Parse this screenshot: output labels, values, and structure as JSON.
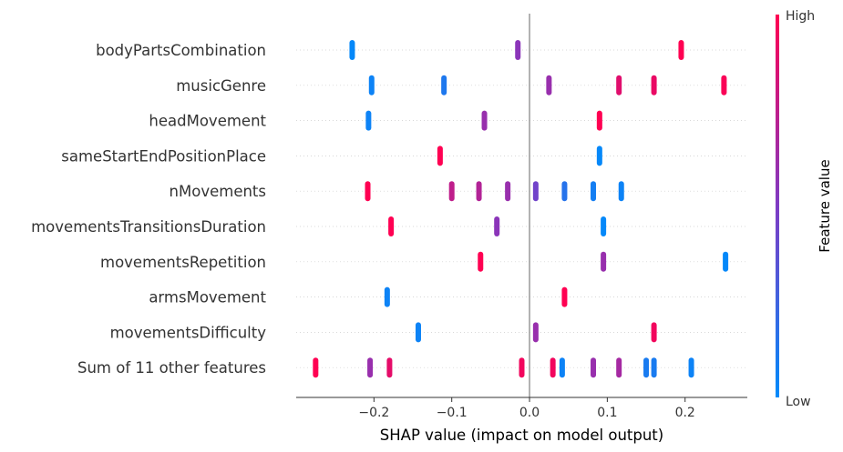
{
  "chart_data": {
    "type": "scatter",
    "subtype": "shap-beeswarm",
    "title": "",
    "xlabel": "SHAP value (impact on model output)",
    "xlim": [
      -0.3,
      0.28
    ],
    "xticks": [
      -0.2,
      -0.1,
      0.0,
      0.1,
      0.2
    ],
    "xtick_labels": [
      "−0.2",
      "−0.1",
      "0.0",
      "0.1",
      "0.2"
    ],
    "zero_line": true,
    "row_gridlines": true,
    "colors": {
      "low": "#008bfb",
      "mid": "#7e3bc4",
      "high": "#ff0052",
      "zero_line": "#999999",
      "grid": "#cccccc"
    },
    "colorbar": {
      "title": "Feature value",
      "high_label": "High",
      "low_label": "Low",
      "placement": "right"
    },
    "features": [
      {
        "name": "bodyPartsCombination",
        "points": [
          {
            "x": -0.228,
            "v": 0.02
          },
          {
            "x": -0.015,
            "v": 0.55
          },
          {
            "x": 0.195,
            "v": 1.0
          }
        ]
      },
      {
        "name": "musicGenre",
        "points": [
          {
            "x": -0.203,
            "v": 0.05
          },
          {
            "x": -0.11,
            "v": 0.12
          },
          {
            "x": 0.025,
            "v": 0.6
          },
          {
            "x": 0.115,
            "v": 0.88
          },
          {
            "x": 0.16,
            "v": 0.92
          },
          {
            "x": 0.25,
            "v": 0.98
          }
        ]
      },
      {
        "name": "headMovement",
        "points": [
          {
            "x": -0.207,
            "v": 0.05
          },
          {
            "x": -0.058,
            "v": 0.6
          },
          {
            "x": 0.09,
            "v": 1.0
          }
        ]
      },
      {
        "name": "sameStartEndPositionPlace",
        "points": [
          {
            "x": -0.115,
            "v": 1.0
          },
          {
            "x": 0.09,
            "v": 0.02
          }
        ]
      },
      {
        "name": "nMovements",
        "points": [
          {
            "x": -0.208,
            "v": 1.0
          },
          {
            "x": -0.1,
            "v": 0.75
          },
          {
            "x": -0.065,
            "v": 0.7
          },
          {
            "x": -0.028,
            "v": 0.6
          },
          {
            "x": 0.008,
            "v": 0.45
          },
          {
            "x": 0.045,
            "v": 0.15
          },
          {
            "x": 0.082,
            "v": 0.08
          },
          {
            "x": 0.118,
            "v": 0.05
          }
        ]
      },
      {
        "name": "movementsTransitionsDuration",
        "points": [
          {
            "x": -0.178,
            "v": 1.0
          },
          {
            "x": -0.042,
            "v": 0.55
          },
          {
            "x": 0.095,
            "v": 0.02
          }
        ]
      },
      {
        "name": "movementsRepetition",
        "points": [
          {
            "x": -0.063,
            "v": 1.0
          },
          {
            "x": 0.095,
            "v": 0.6
          },
          {
            "x": 0.252,
            "v": 0.02
          }
        ]
      },
      {
        "name": "armsMovement",
        "points": [
          {
            "x": -0.183,
            "v": 0.05
          },
          {
            "x": 0.045,
            "v": 1.0
          }
        ]
      },
      {
        "name": "movementsDifficulty",
        "points": [
          {
            "x": -0.143,
            "v": 0.05
          },
          {
            "x": 0.008,
            "v": 0.6
          },
          {
            "x": 0.16,
            "v": 0.95
          }
        ]
      },
      {
        "name": "Sum of 11 other features",
        "points": [
          {
            "x": -0.275,
            "v": 1.0
          },
          {
            "x": -0.205,
            "v": 0.6
          },
          {
            "x": -0.18,
            "v": 0.9
          },
          {
            "x": -0.01,
            "v": 0.95
          },
          {
            "x": 0.03,
            "v": 0.95
          },
          {
            "x": 0.042,
            "v": 0.05
          },
          {
            "x": 0.082,
            "v": 0.6
          },
          {
            "x": 0.115,
            "v": 0.65
          },
          {
            "x": 0.15,
            "v": 0.1
          },
          {
            "x": 0.16,
            "v": 0.1
          },
          {
            "x": 0.208,
            "v": 0.05
          }
        ]
      }
    ]
  }
}
